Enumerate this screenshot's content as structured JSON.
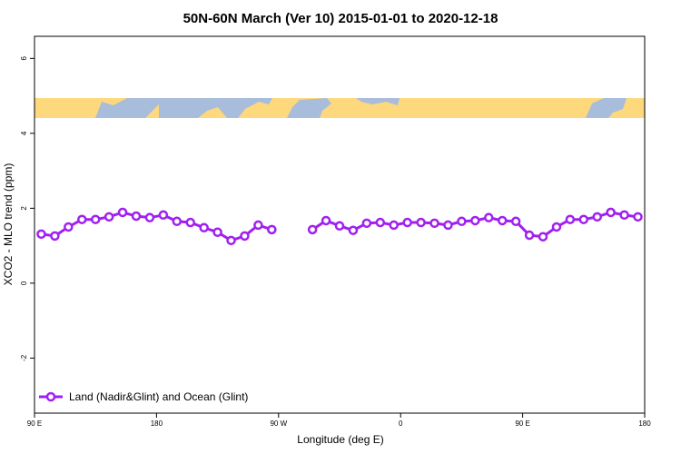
{
  "chart_data": {
    "type": "line",
    "title": "50N-60N March (Ver 10)   2015-01-01 to 2020-12-18",
    "xlabel": "Longitude (deg E)",
    "ylabel": "XCO2 - MLO trend (ppm)",
    "x": [
      95,
      105,
      115,
      125,
      135,
      145,
      155,
      165,
      175,
      185,
      195,
      205,
      215,
      225,
      235,
      245,
      255,
      265,
      275,
      285,
      295,
      305,
      315,
      325,
      335,
      345,
      355,
      365,
      375,
      385,
      395,
      405,
      415,
      425,
      435,
      445,
      455,
      465,
      475,
      485,
      495,
      505,
      515,
      525,
      535
    ],
    "series": [
      {
        "name": "Land (Nadir&Glint) and Ocean (Glint)",
        "color": "#a020f0",
        "values": [
          1.31,
          1.26,
          1.5,
          1.7,
          1.7,
          1.77,
          1.89,
          1.79,
          1.75,
          1.82,
          1.65,
          1.62,
          1.48,
          1.36,
          1.14,
          1.26,
          1.55,
          1.43,
          null,
          null,
          1.43,
          1.67,
          1.53,
          1.41,
          1.6,
          1.62,
          1.55,
          1.62,
          1.62,
          1.6,
          1.55,
          1.65,
          1.67,
          1.75,
          1.67,
          1.65,
          1.28,
          1.24,
          1.5,
          1.7,
          1.7,
          1.77,
          1.89,
          1.82,
          1.77
        ]
      }
    ],
    "xlim": [
      90,
      540
    ],
    "xticks": [
      {
        "value": 90,
        "label": "90 E"
      },
      180,
      {
        "value": 270,
        "label": "90 W"
      },
      {
        "value": 360,
        "label": "0"
      },
      {
        "value": 450,
        "label": "90 E"
      },
      180
    ],
    "ylim": [
      -3.47,
      6.59
    ],
    "yticks": [
      -2,
      0,
      2,
      4,
      6
    ],
    "legend": "bottom-left"
  }
}
